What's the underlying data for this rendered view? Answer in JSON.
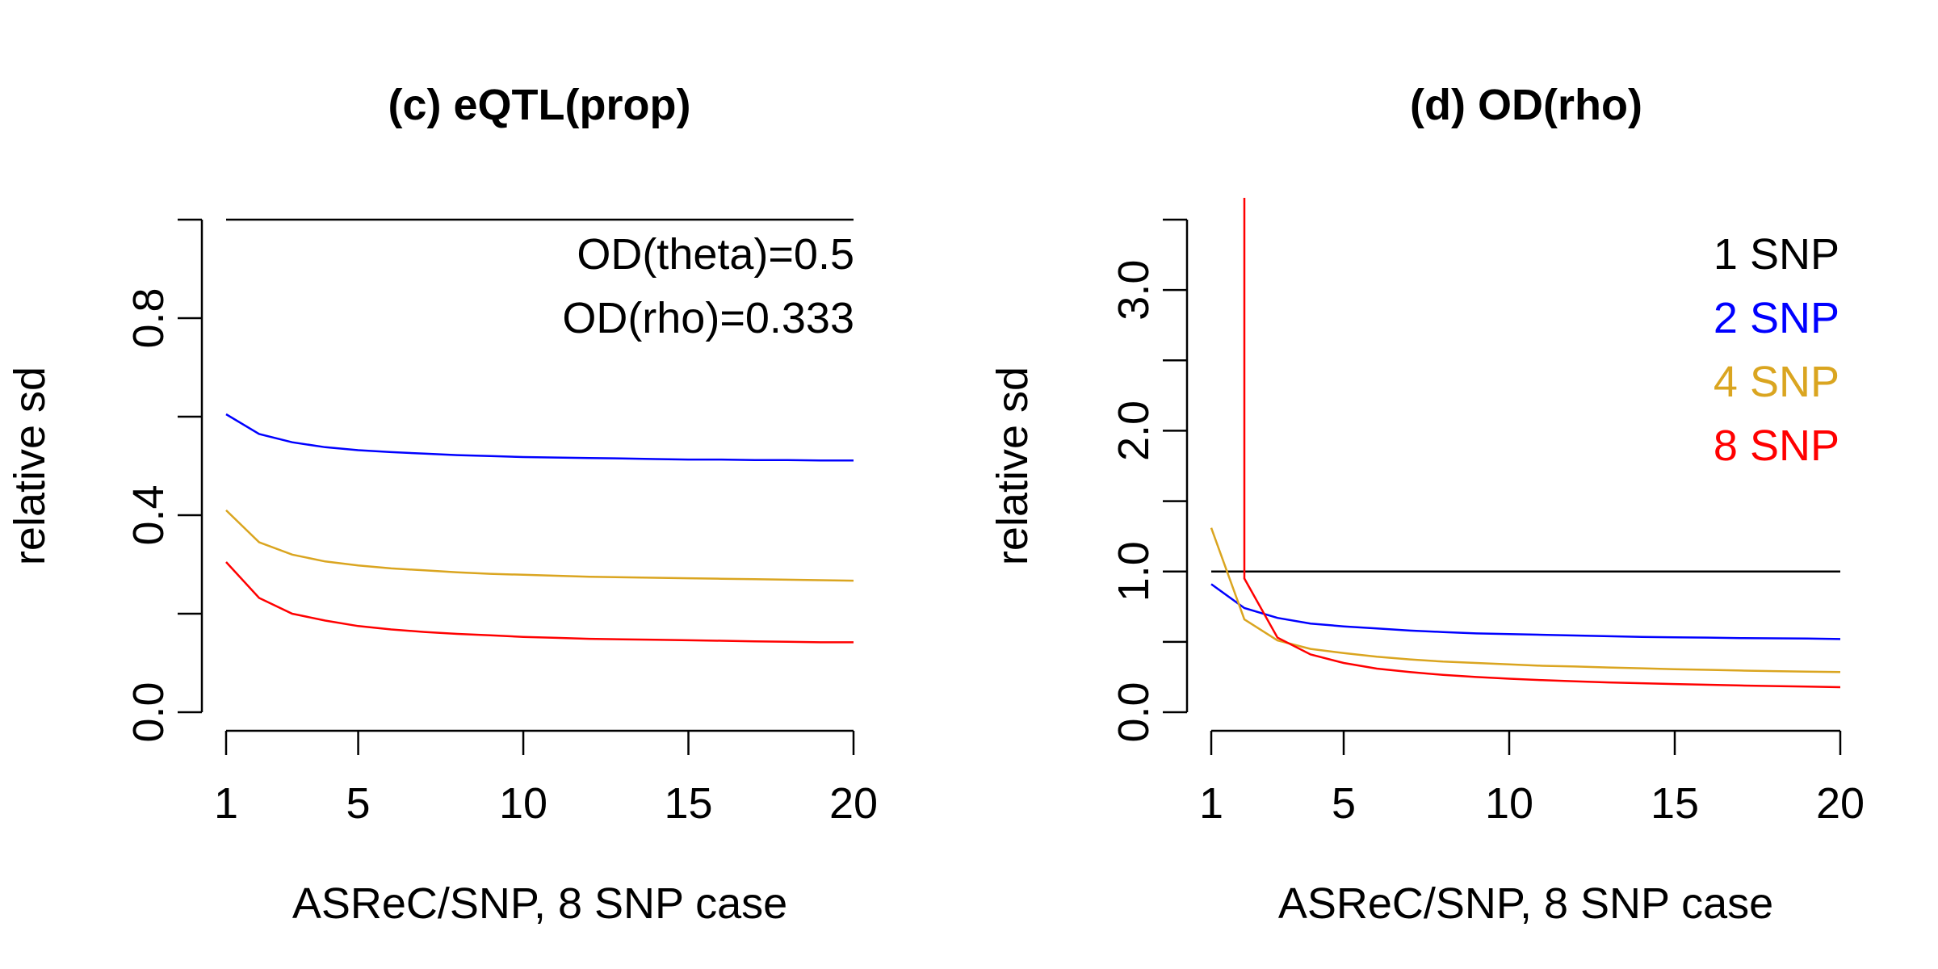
{
  "panels": [
    {
      "chart_data": {
        "type": "line",
        "title": "(c) eQTL(prop)",
        "xlabel": "ASReC/SNP, 8 SNP case",
        "ylabel": "relative sd",
        "xlim": [
          1,
          20
        ],
        "ylim": [
          0,
          1
        ],
        "xticks": [
          "1",
          "5",
          "10",
          "15",
          "20"
        ],
        "xtick_values": [
          1,
          5,
          10,
          15,
          20
        ],
        "yticks": [
          "0.0",
          "0.4",
          "0.8"
        ],
        "ytick_values": [
          0,
          0.4,
          0.8
        ],
        "yminor_values": [
          0.2,
          0.6,
          1.0
        ],
        "grid": false,
        "annotations": [
          "OD(theta)=0.5",
          "OD(rho)=0.333"
        ],
        "legend": [],
        "x": [
          1,
          2,
          3,
          4,
          5,
          6,
          7,
          8,
          9,
          10,
          11,
          12,
          13,
          14,
          15,
          16,
          17,
          18,
          19,
          20
        ],
        "series": [
          {
            "color": "#000000",
            "values": [
              1,
              1,
              1,
              1,
              1,
              1,
              1,
              1,
              1,
              1,
              1,
              1,
              1,
              1,
              1,
              1,
              1,
              1,
              1,
              1
            ]
          },
          {
            "color": "#0000ff",
            "values": [
              0.605,
              0.565,
              0.548,
              0.538,
              0.532,
              0.528,
              0.525,
              0.522,
              0.52,
              0.518,
              0.517,
              0.516,
              0.515,
              0.514,
              0.513,
              0.513,
              0.512,
              0.512,
              0.511,
              0.511
            ]
          },
          {
            "color": "#daa520",
            "values": [
              0.41,
              0.345,
              0.32,
              0.306,
              0.298,
              0.292,
              0.288,
              0.284,
              0.281,
              0.279,
              0.277,
              0.275,
              0.274,
              0.273,
              0.272,
              0.271,
              0.27,
              0.269,
              0.268,
              0.267
            ]
          },
          {
            "color": "#ff0000",
            "values": [
              0.305,
              0.232,
              0.2,
              0.186,
              0.175,
              0.168,
              0.163,
              0.159,
              0.156,
              0.153,
              0.151,
              0.149,
              0.148,
              0.147,
              0.146,
              0.145,
              0.144,
              0.143,
              0.142,
              0.142
            ]
          }
        ]
      }
    },
    {
      "chart_data": {
        "type": "line",
        "title": "(d) OD(rho)",
        "xlabel": "ASReC/SNP, 8 SNP case",
        "ylabel": "relative sd",
        "xlim": [
          1,
          20
        ],
        "ylim": [
          0,
          3.5
        ],
        "xticks": [
          "1",
          "5",
          "10",
          "15",
          "20"
        ],
        "xtick_values": [
          1,
          5,
          10,
          15,
          20
        ],
        "yticks": [
          "0.0",
          "1.0",
          "2.0",
          "3.0"
        ],
        "ytick_values": [
          0,
          1,
          2,
          3
        ],
        "yminor_values": [
          0.5,
          1.5,
          2.5,
          3.5
        ],
        "grid": false,
        "annotations": [],
        "legend": [
          {
            "label": "1 SNP",
            "color": "#000000"
          },
          {
            "label": "2 SNP",
            "color": "#0000ff"
          },
          {
            "label": "4 SNP",
            "color": "#daa520"
          },
          {
            "label": "8 SNP",
            "color": "#ff0000"
          }
        ],
        "x": [
          1,
          2,
          3,
          4,
          5,
          6,
          7,
          8,
          9,
          10,
          11,
          12,
          13,
          14,
          15,
          16,
          17,
          18,
          19,
          20
        ],
        "series": [
          {
            "color": "#000000",
            "values": [
              1,
              1,
              1,
              1,
              1,
              1,
              1,
              1,
              1,
              1,
              1,
              1,
              1,
              1,
              1,
              1,
              1,
              1,
              1,
              1
            ]
          },
          {
            "color": "#0000ff",
            "values": [
              0.91,
              0.74,
              0.67,
              0.63,
              0.61,
              0.595,
              0.58,
              0.57,
              0.56,
              0.555,
              0.55,
              0.545,
              0.54,
              0.535,
              0.532,
              0.53,
              0.527,
              0.525,
              0.523,
              0.52
            ]
          },
          {
            "color": "#daa520",
            "values": [
              1.31,
              0.66,
              0.51,
              0.45,
              0.42,
              0.395,
              0.375,
              0.36,
              0.35,
              0.34,
              0.33,
              0.325,
              0.318,
              0.312,
              0.306,
              0.301,
              0.296,
              0.292,
              0.288,
              0.285
            ]
          },
          {
            "color": "#ff0000",
            "values": [
              4.5,
              0.95,
              0.53,
              0.41,
              0.35,
              0.31,
              0.285,
              0.265,
              0.25,
              0.238,
              0.228,
              0.22,
              0.212,
              0.206,
              0.2,
              0.195,
              0.19,
              0.186,
              0.182,
              0.178
            ]
          }
        ]
      }
    }
  ]
}
